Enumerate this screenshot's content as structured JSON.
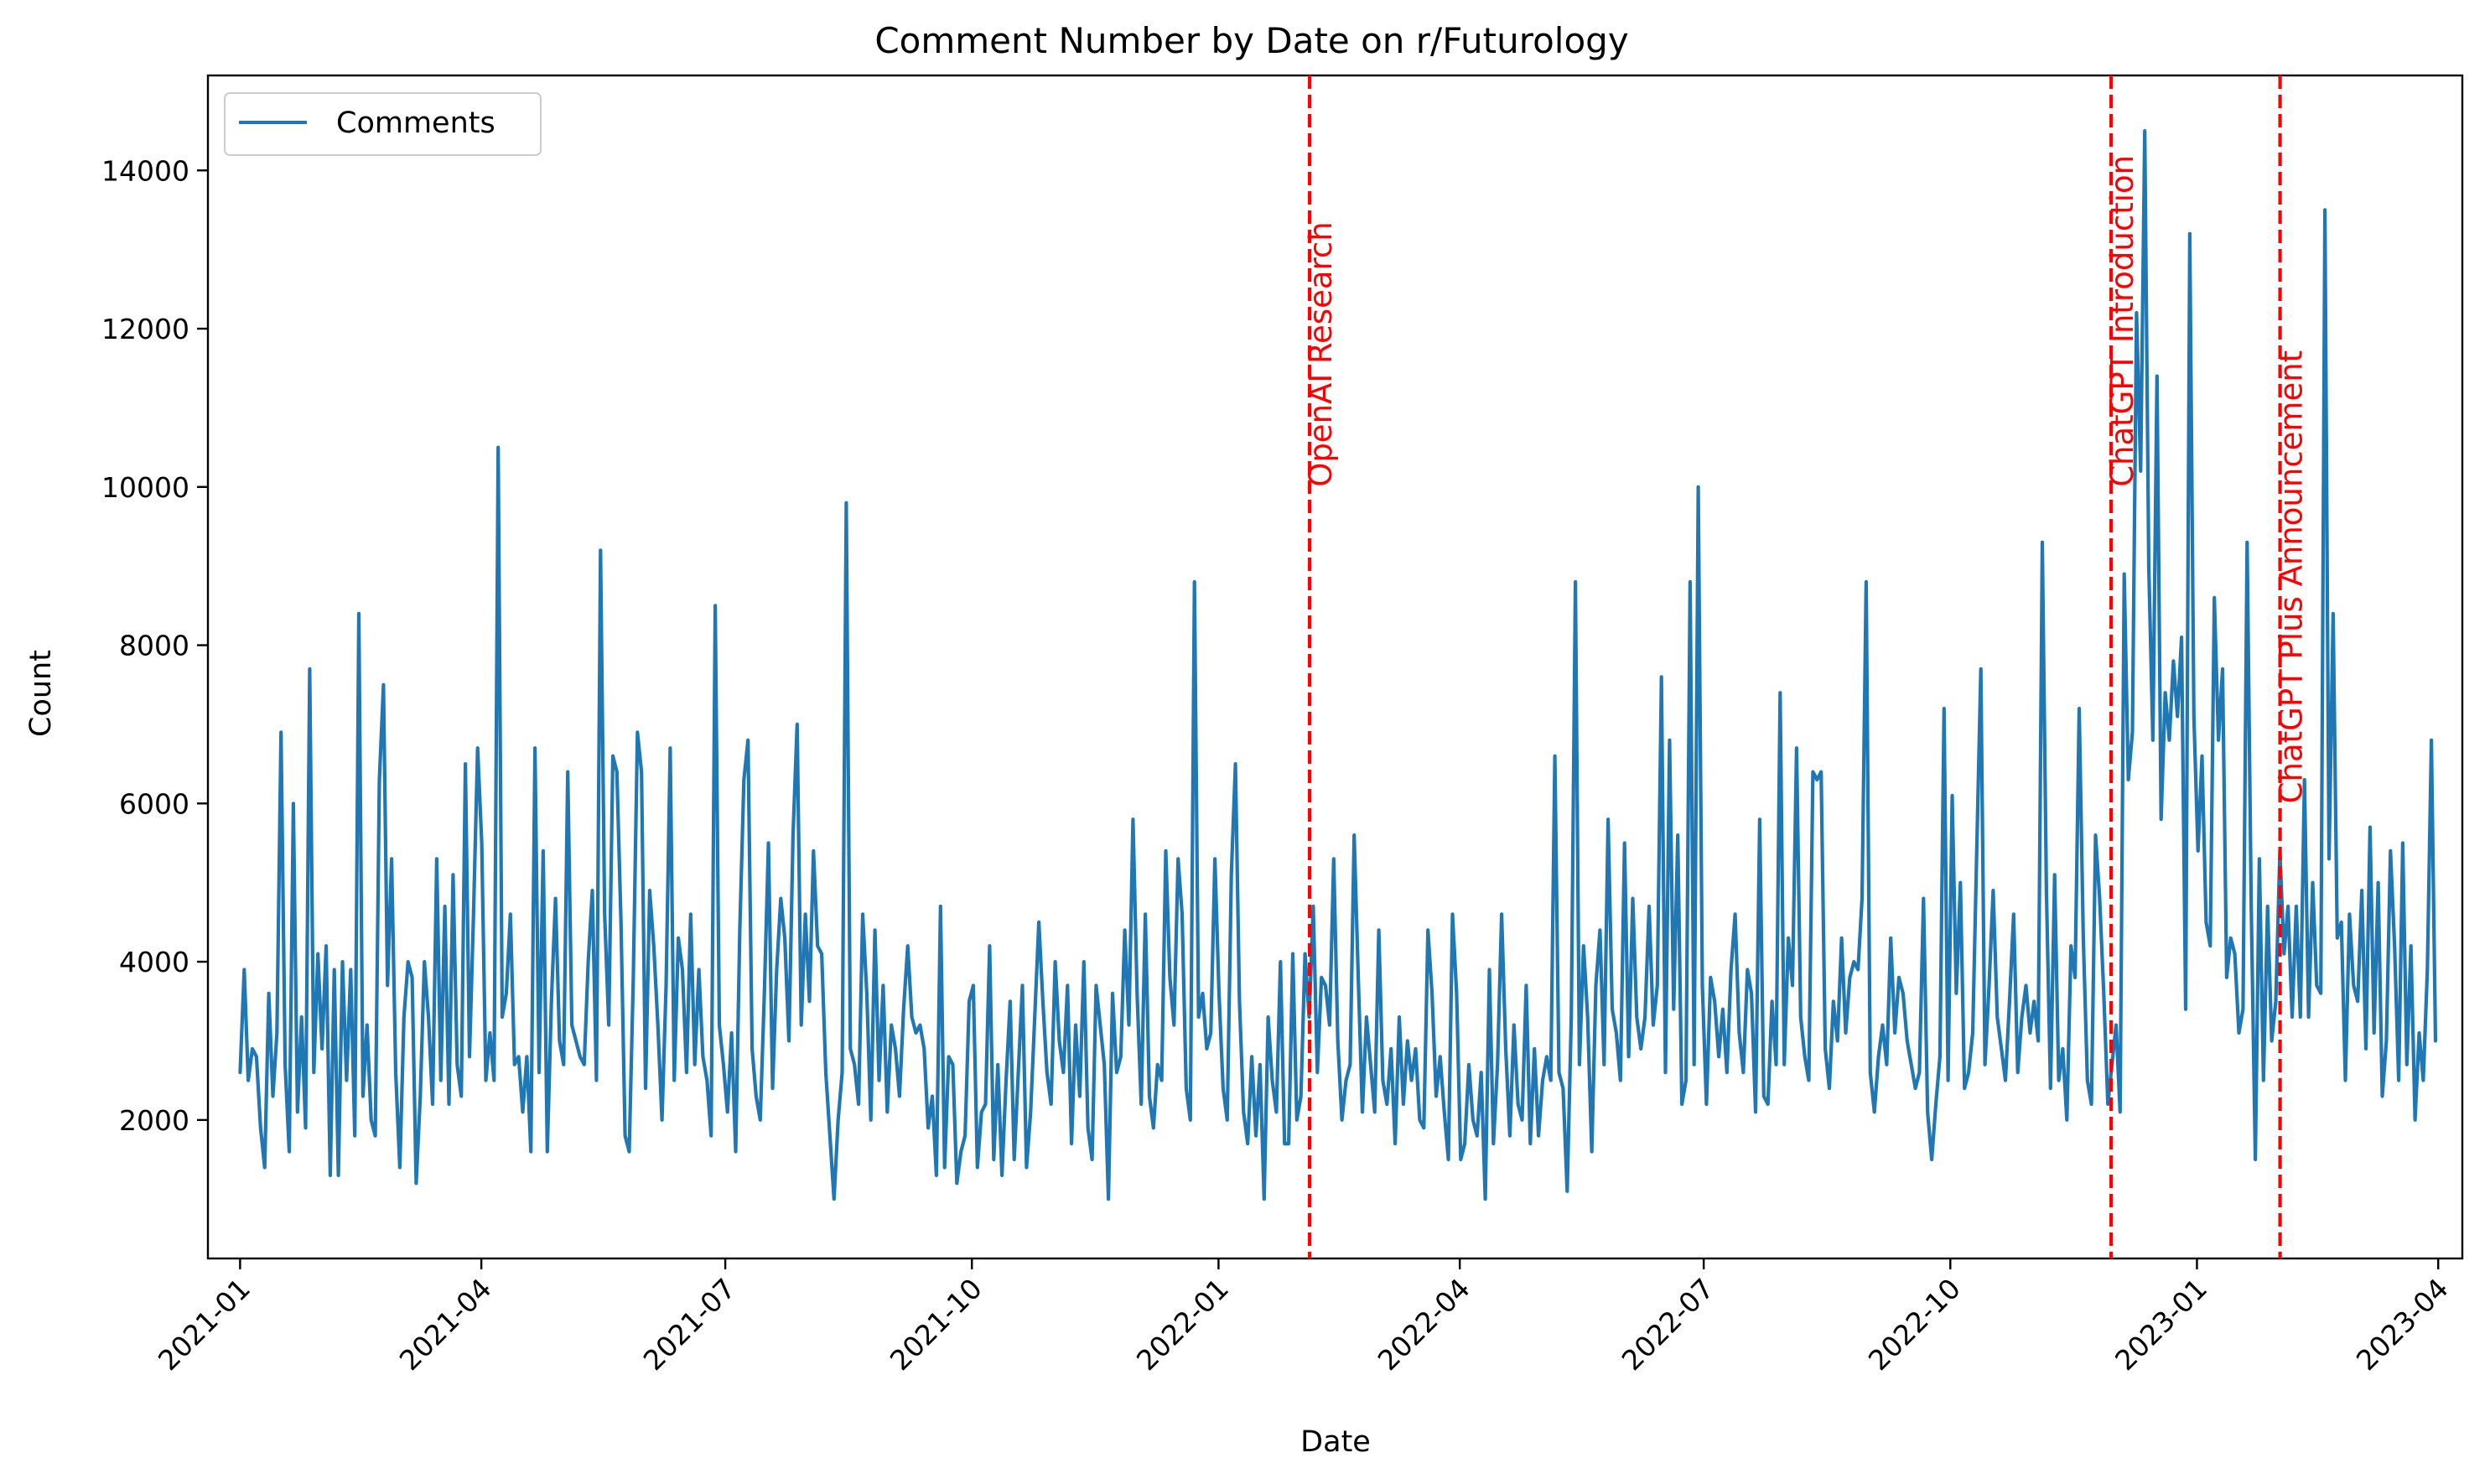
{
  "chart_data": {
    "type": "line",
    "title": "Comment Number by Date on r/Futurology",
    "xlabel": "Date",
    "ylabel": "Count",
    "xlim": [
      "2020-12-20",
      "2023-04-10"
    ],
    "ylim": [
      250,
      15200
    ],
    "x_ticks": [
      "2021-01",
      "2021-04",
      "2021-07",
      "2021-10",
      "2022-01",
      "2022-04",
      "2022-07",
      "2022-10",
      "2023-01",
      "2023-04"
    ],
    "x_tick_dates": [
      "2021-01-01",
      "2021-04-01",
      "2021-07-01",
      "2021-10-01",
      "2022-01-01",
      "2022-04-01",
      "2022-07-01",
      "2022-10-01",
      "2023-01-01",
      "2023-04-01"
    ],
    "y_ticks": [
      2000,
      4000,
      6000,
      8000,
      10000,
      12000,
      14000
    ],
    "grid": false,
    "legend_position": "top-left",
    "series": [
      {
        "name": "Comments",
        "color": "#1f77b4",
        "x_start": "2021-01-01",
        "x_end": "2023-03-31",
        "values": [
          2600,
          3900,
          2500,
          2900,
          2800,
          1900,
          1400,
          3600,
          2300,
          3100,
          6900,
          2700,
          1600,
          6000,
          2100,
          3300,
          1900,
          7700,
          2600,
          4100,
          2900,
          4200,
          1300,
          3900,
          1300,
          4000,
          2500,
          3900,
          1800,
          8400,
          2300,
          3200,
          2000,
          1800,
          6300,
          7500,
          3700,
          5300,
          2600,
          1400,
          3300,
          4000,
          3800,
          1200,
          2300,
          4000,
          3300,
          2200,
          5300,
          2500,
          4700,
          2200,
          5100,
          2700,
          2300,
          6500,
          2800,
          4600,
          6700,
          5500,
          2500,
          3100,
          2500,
          10500,
          3300,
          3600,
          4600,
          2700,
          2800,
          2100,
          2800,
          1600,
          6700,
          2600,
          5400,
          1600,
          3500,
          4800,
          3000,
          2700,
          6400,
          3200,
          3000,
          2800,
          2700,
          4000,
          4900,
          2500,
          9200,
          4600,
          3200,
          6600,
          6400,
          4500,
          1800,
          1600,
          3800,
          6900,
          6400,
          2400,
          4900,
          4200,
          3200,
          2000,
          3700,
          6700,
          2500,
          4300,
          3900,
          2600,
          4600,
          2700,
          3900,
          2800,
          2500,
          1800,
          8500,
          3200,
          2700,
          2100,
          3100,
          1600,
          4400,
          6300,
          6800,
          2900,
          2300,
          2000,
          3600,
          5500,
          2400,
          3900,
          4800,
          4300,
          3000,
          5600,
          7000,
          3200,
          4600,
          3500,
          5400,
          4200,
          4100,
          2600,
          1800,
          1000,
          2000,
          2600,
          9800,
          2900,
          2700,
          2200,
          4600,
          3600,
          2000,
          4400,
          2500,
          3700,
          2100,
          3200,
          2900,
          2300,
          3400,
          4200,
          3300,
          3100,
          3200,
          2900,
          1900,
          2300,
          1300,
          4700,
          1400,
          2800,
          2700,
          1200,
          1600,
          1800,
          3500,
          3700,
          1400,
          2100,
          2200,
          4200,
          1500,
          2700,
          1300,
          2500,
          3500,
          1500,
          2600,
          3700,
          1400,
          2100,
          3300,
          4500,
          3500,
          2600,
          2200,
          4000,
          3000,
          2600,
          3700,
          1700,
          3200,
          2300,
          4000,
          1900,
          1500,
          3700,
          3200,
          2700,
          1000,
          3600,
          2600,
          2800,
          4400,
          3200,
          5800,
          3600,
          2200,
          4600,
          2300,
          1900,
          2700,
          2500,
          5400,
          3800,
          3200,
          5300,
          4600,
          2400,
          2000,
          8800,
          3300,
          3600,
          2900,
          3100,
          5300,
          3600,
          2400,
          2000,
          5100,
          6500,
          3500,
          2100,
          1700,
          2800,
          1800,
          2700,
          1000,
          3300,
          2500,
          2100,
          4000,
          1700,
          1700,
          4100,
          2000,
          2300,
          4100,
          3300,
          4700,
          2600,
          3800,
          3700,
          3200,
          5300,
          3000,
          2000,
          2500,
          2700,
          5600,
          3800,
          2100,
          3300,
          2700,
          2100,
          4400,
          2500,
          2200,
          2900,
          1700,
          3300,
          2200,
          3000,
          2500,
          2900,
          2000,
          1900,
          4400,
          3600,
          2300,
          2800,
          2100,
          1500,
          4600,
          3600,
          1500,
          1700,
          2700,
          2000,
          1800,
          2600,
          1000,
          3900,
          1700,
          2700,
          4600,
          2900,
          1800,
          3200,
          2200,
          2000,
          3700,
          1700,
          2900,
          1800,
          2500,
          2800,
          2500,
          6600,
          2600,
          2400,
          1100,
          3300,
          8800,
          2700,
          4200,
          3300,
          1600,
          3700,
          4400,
          2700,
          5800,
          3400,
          3100,
          2500,
          5500,
          2800,
          4800,
          3300,
          2900,
          3300,
          4700,
          3200,
          3700,
          7600,
          2600,
          6800,
          3400,
          5600,
          2200,
          2500,
          8800,
          2700,
          10000,
          3700,
          2200,
          3800,
          3500,
          2800,
          3400,
          2600,
          3900,
          4600,
          3100,
          2600,
          3900,
          3600,
          2100,
          5800,
          2300,
          2200,
          3500,
          2700,
          7400,
          2700,
          4300,
          3700,
          6700,
          3300,
          2800,
          2500,
          6400,
          6300,
          6400,
          2900,
          2400,
          3500,
          3000,
          4300,
          3100,
          3800,
          4000,
          3900,
          4800,
          8800,
          2600,
          2100,
          2800,
          3200,
          2700,
          4300,
          3100,
          3800,
          3600,
          3000,
          2700,
          2400,
          2600,
          4800,
          2100,
          1500,
          2200,
          2800,
          7200,
          2500,
          6100,
          3600,
          5000,
          2400,
          2600,
          3100,
          5400,
          7700,
          2700,
          3700,
          4900,
          3300,
          2900,
          2500,
          3500,
          4600,
          2600,
          3300,
          3700,
          3100,
          3500,
          3000,
          9300,
          4900,
          2400,
          5100,
          2500,
          2900,
          2000,
          4200,
          3800,
          7200,
          4300,
          2500,
          2200,
          5600,
          4800,
          3600,
          2200,
          2700,
          3200,
          2100,
          8900,
          6300,
          6900,
          12200,
          10200,
          14500,
          9000,
          6800,
          11400,
          5800,
          7400,
          6800,
          7800,
          7100,
          8100,
          3400,
          13200,
          7100,
          5400,
          6600,
          4500,
          4200,
          8600,
          6800,
          7700,
          3800,
          4300,
          4100,
          3100,
          3400,
          9300,
          4700,
          1500,
          5300,
          2500,
          4700,
          3000,
          3500,
          5400,
          4100,
          4700,
          3300,
          4700,
          3300,
          6300,
          3300,
          5000,
          3700,
          3600,
          13500,
          5300,
          8400,
          4300,
          4500,
          2500,
          4600,
          3700,
          3500,
          4900,
          2900,
          5700,
          3100,
          5000,
          2300,
          3000,
          5400,
          4200,
          2500,
          5500,
          2700,
          4200,
          2000,
          3100,
          2500,
          3900,
          6800,
          3000
        ]
      }
    ],
    "events": [
      {
        "date": "2022-02-04",
        "label": "OpenAI Research",
        "color": "#ff0000",
        "label_y": 10000
      },
      {
        "date": "2022-11-30",
        "label": "ChatGPT Introduction",
        "color": "#ff0000",
        "label_y": 10000
      },
      {
        "date": "2023-02-01",
        "label": "ChatGPT Plus Announcement",
        "color": "#ff0000",
        "label_y": 6000
      }
    ]
  }
}
